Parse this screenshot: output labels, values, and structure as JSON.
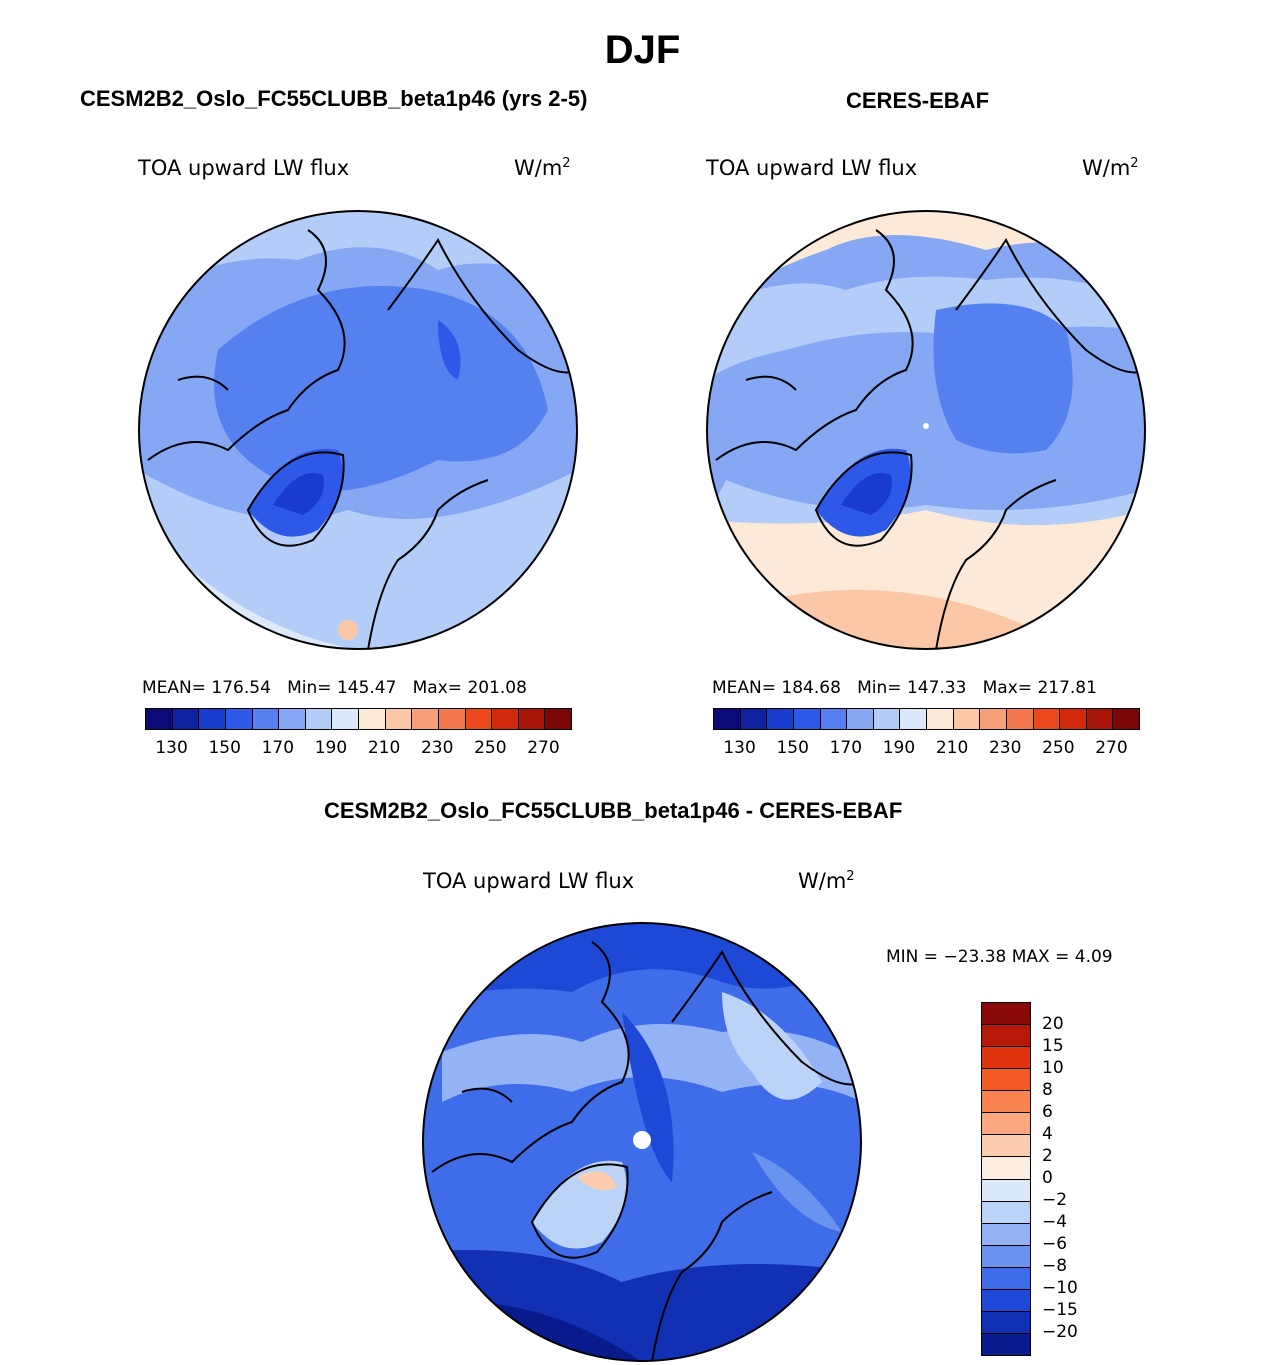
{
  "page": {
    "title": "DJF"
  },
  "panels": {
    "model": {
      "title": "CESM2B2_Oslo_FC55CLUBB_beta1p46 (yrs 2-5)",
      "variable": "TOA upward LW flux",
      "units": "W/m",
      "units_sup": "2",
      "stats": {
        "mean_label": "MEAN=",
        "mean": "176.54",
        "min_label": "Min=",
        "min": "145.47",
        "max_label": "Max=",
        "max": "201.08"
      }
    },
    "obs": {
      "title": "CERES-EBAF",
      "variable": "TOA upward LW flux",
      "units": "W/m",
      "units_sup": "2",
      "stats": {
        "mean_label": "MEAN=",
        "mean": "184.68",
        "min_label": "Min=",
        "min": "147.33",
        "max_label": "Max=",
        "max": "217.81"
      }
    },
    "diff": {
      "title": "CESM2B2_Oslo_FC55CLUBB_beta1p46 - CERES-EBAF",
      "variable": "TOA upward LW flux",
      "units": "W/m",
      "units_sup": "2",
      "minmax": "MIN = −23.38 MAX =    4.09"
    }
  },
  "chart_data": [
    {
      "type": "heatmap",
      "projection": "north polar stereographic",
      "title": "CESM2B2_Oslo_FC55CLUBB_beta1p46 (yrs 2-5)",
      "variable": "TOA upward LW flux",
      "units": "W/m2",
      "mean": 176.54,
      "min": 145.47,
      "max": 201.08,
      "colorbar": {
        "orientation": "horizontal",
        "tick_labels": [
          "130",
          "150",
          "170",
          "190",
          "210",
          "230",
          "250",
          "270"
        ],
        "colors": [
          "#0a0a78",
          "#0f22a0",
          "#1a3ccc",
          "#2e59e8",
          "#5580ef",
          "#86a8f4",
          "#b4cdf8",
          "#dbe9fb",
          "#fde9d8",
          "#fcc7a6",
          "#f8a07a",
          "#f4784e",
          "#ec4a1e",
          "#d02a0a",
          "#a8160a",
          "#7a0606"
        ]
      }
    },
    {
      "type": "heatmap",
      "projection": "north polar stereographic",
      "title": "CERES-EBAF",
      "variable": "TOA upward LW flux",
      "units": "W/m2",
      "mean": 184.68,
      "min": 147.33,
      "max": 217.81,
      "colorbar": {
        "orientation": "horizontal",
        "tick_labels": [
          "130",
          "150",
          "170",
          "190",
          "210",
          "230",
          "250",
          "270"
        ],
        "colors": [
          "#0a0a78",
          "#0f22a0",
          "#1a3ccc",
          "#2e59e8",
          "#5580ef",
          "#86a8f4",
          "#b4cdf8",
          "#dbe9fb",
          "#fde9d8",
          "#fcc7a6",
          "#f8a07a",
          "#f4784e",
          "#ec4a1e",
          "#d02a0a",
          "#a8160a",
          "#7a0606"
        ]
      }
    },
    {
      "type": "heatmap",
      "projection": "north polar stereographic",
      "title": "CESM2B2_Oslo_FC55CLUBB_beta1p46 - CERES-EBAF",
      "variable": "TOA upward LW flux",
      "units": "W/m2",
      "min": -23.38,
      "max": 4.09,
      "colorbar": {
        "orientation": "vertical",
        "tick_labels": [
          "20",
          "15",
          "10",
          "8",
          "6",
          "4",
          "2",
          "0",
          "−2",
          "−4",
          "−6",
          "−8",
          "−10",
          "−15",
          "−20"
        ],
        "colors": [
          "#8a0a0a",
          "#b81a0a",
          "#e0340e",
          "#f25a26",
          "#f8834e",
          "#fba880",
          "#fdcdb0",
          "#fdeee2",
          "#dbe9fb",
          "#bcd3f8",
          "#93b3f4",
          "#6a92ef",
          "#3f6ce8",
          "#1e48d6",
          "#1230b4",
          "#081a8c"
        ]
      }
    }
  ]
}
